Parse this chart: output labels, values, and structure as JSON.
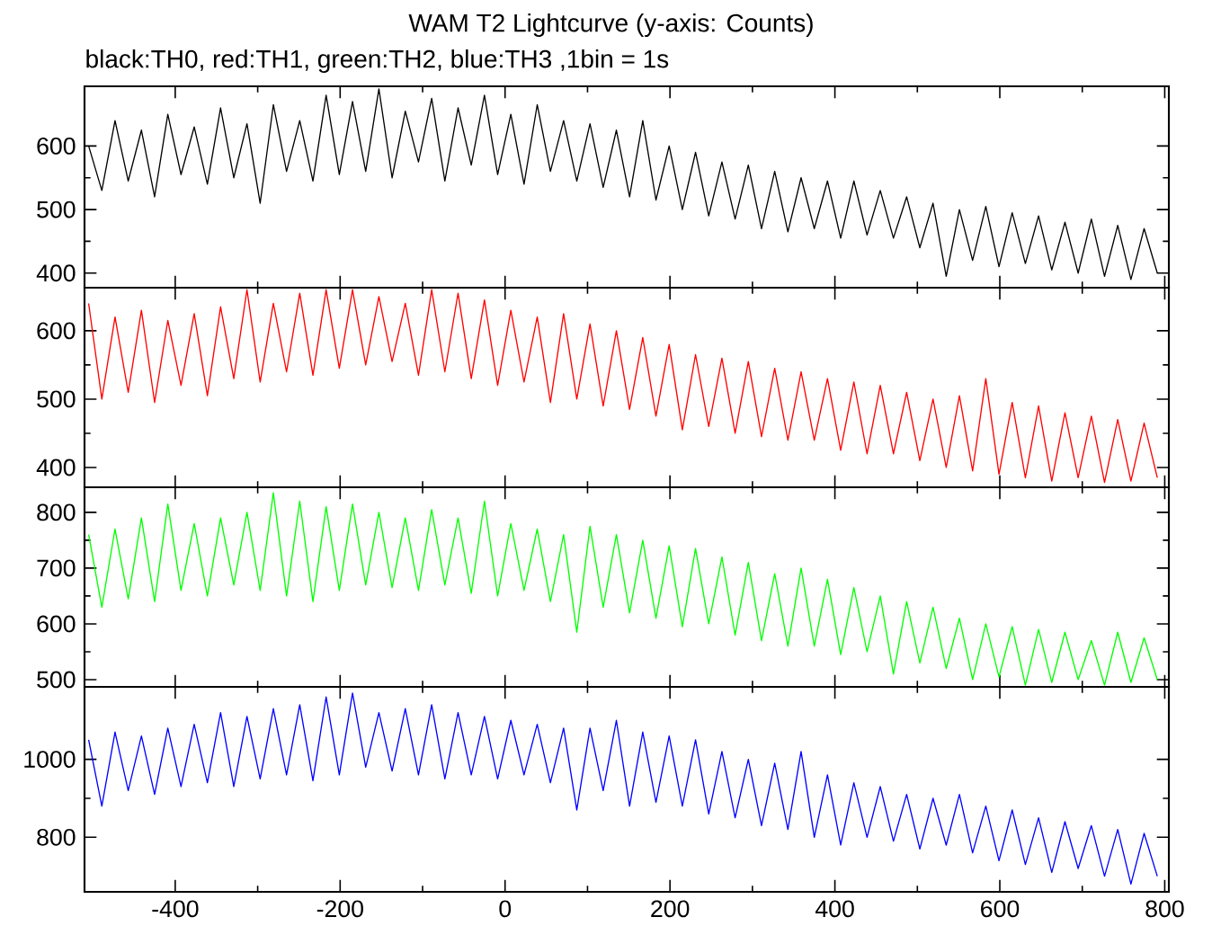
{
  "chart_data": [
    {
      "type": "line",
      "title": "WAM T2 Lightcurve (y-axis: Counts)",
      "subtitle": "black:TH0, red:TH1, green:TH2, blue:TH3 ,1bin = 1s",
      "x": [
        -505,
        -489,
        -473,
        -457,
        -441,
        -425,
        -409,
        -393,
        -377,
        -361,
        -345,
        -329,
        -313,
        -297,
        -281,
        -265,
        -249,
        -233,
        -217,
        -201,
        -185,
        -169,
        -153,
        -137,
        -121,
        -105,
        -89,
        -73,
        -57,
        -41,
        -25,
        -9,
        7,
        23,
        39,
        55,
        71,
        87,
        103,
        119,
        135,
        151,
        167,
        183,
        199,
        215,
        231,
        247,
        263,
        279,
        295,
        311,
        327,
        343,
        359,
        375,
        391,
        407,
        423,
        439,
        455,
        471,
        487,
        503,
        519,
        535,
        551,
        567,
        583,
        599,
        615,
        631,
        647,
        663,
        679,
        695,
        711,
        727,
        743,
        759,
        775,
        791
      ],
      "series": [
        {
          "color": "#000000",
          "values": [
            600,
            530,
            640,
            545,
            625,
            520,
            650,
            555,
            630,
            540,
            660,
            550,
            635,
            510,
            665,
            560,
            640,
            545,
            680,
            555,
            670,
            560,
            690,
            550,
            655,
            575,
            675,
            545,
            660,
            570,
            680,
            555,
            650,
            540,
            665,
            560,
            640,
            545,
            635,
            535,
            625,
            520,
            640,
            515,
            600,
            500,
            590,
            490,
            575,
            485,
            570,
            470,
            560,
            465,
            550,
            470,
            545,
            455,
            545,
            460,
            530,
            455,
            520,
            440,
            510,
            395,
            500,
            420,
            505,
            410,
            495,
            415,
            490,
            405,
            480,
            400,
            485,
            395,
            475,
            390,
            470,
            400
          ]
        }
      ],
      "xlim": [
        -510,
        805
      ],
      "xticks": [
        -400,
        -200,
        0,
        200,
        400,
        600,
        800
      ],
      "ylim": [
        377,
        694
      ],
      "yticks": [
        400,
        500,
        600
      ],
      "tick_labels": "y"
    },
    {
      "type": "line",
      "x": [
        -505,
        -489,
        -473,
        -457,
        -441,
        -425,
        -409,
        -393,
        -377,
        -361,
        -345,
        -329,
        -313,
        -297,
        -281,
        -265,
        -249,
        -233,
        -217,
        -201,
        -185,
        -169,
        -153,
        -137,
        -121,
        -105,
        -89,
        -73,
        -57,
        -41,
        -25,
        -9,
        7,
        23,
        39,
        55,
        71,
        87,
        103,
        119,
        135,
        151,
        167,
        183,
        199,
        215,
        231,
        247,
        263,
        279,
        295,
        311,
        327,
        343,
        359,
        375,
        391,
        407,
        423,
        439,
        455,
        471,
        487,
        503,
        519,
        535,
        551,
        567,
        583,
        599,
        615,
        631,
        647,
        663,
        679,
        695,
        711,
        727,
        743,
        759,
        775,
        791
      ],
      "series": [
        {
          "color": "#ff0000",
          "values": [
            640,
            500,
            620,
            510,
            630,
            495,
            615,
            520,
            625,
            505,
            635,
            530,
            660,
            525,
            640,
            540,
            655,
            535,
            660,
            545,
            660,
            550,
            650,
            555,
            640,
            535,
            660,
            540,
            655,
            530,
            645,
            520,
            630,
            525,
            620,
            495,
            625,
            500,
            610,
            490,
            600,
            485,
            590,
            475,
            580,
            455,
            565,
            460,
            560,
            450,
            555,
            445,
            545,
            440,
            540,
            440,
            530,
            425,
            525,
            420,
            520,
            420,
            510,
            410,
            500,
            400,
            505,
            395,
            530,
            390,
            495,
            385,
            490,
            380,
            480,
            385,
            475,
            378,
            470,
            380,
            465,
            385
          ]
        }
      ],
      "xlim": [
        -510,
        805
      ],
      "xticks": [
        -400,
        -200,
        0,
        200,
        400,
        600,
        800
      ],
      "ylim": [
        371,
        663
      ],
      "yticks": [
        400,
        500,
        600
      ],
      "tick_labels": "y"
    },
    {
      "type": "line",
      "x": [
        -505,
        -489,
        -473,
        -457,
        -441,
        -425,
        -409,
        -393,
        -377,
        -361,
        -345,
        -329,
        -313,
        -297,
        -281,
        -265,
        -249,
        -233,
        -217,
        -201,
        -185,
        -169,
        -153,
        -137,
        -121,
        -105,
        -89,
        -73,
        -57,
        -41,
        -25,
        -9,
        7,
        23,
        39,
        55,
        71,
        87,
        103,
        119,
        135,
        151,
        167,
        183,
        199,
        215,
        231,
        247,
        263,
        279,
        295,
        311,
        327,
        343,
        359,
        375,
        391,
        407,
        423,
        439,
        455,
        471,
        487,
        503,
        519,
        535,
        551,
        567,
        583,
        599,
        615,
        631,
        647,
        663,
        679,
        695,
        711,
        727,
        743,
        759,
        775,
        791
      ],
      "series": [
        {
          "color": "#00ff00",
          "values": [
            760,
            630,
            770,
            645,
            790,
            640,
            815,
            660,
            780,
            650,
            790,
            670,
            800,
            660,
            835,
            650,
            820,
            640,
            810,
            660,
            815,
            670,
            800,
            665,
            790,
            660,
            805,
            670,
            790,
            655,
            820,
            650,
            780,
            660,
            770,
            640,
            760,
            585,
            775,
            630,
            760,
            620,
            750,
            610,
            740,
            595,
            735,
            600,
            720,
            580,
            710,
            570,
            690,
            560,
            700,
            560,
            680,
            545,
            665,
            550,
            650,
            510,
            640,
            530,
            630,
            520,
            610,
            500,
            600,
            505,
            595,
            490,
            590,
            495,
            585,
            500,
            570,
            490,
            585,
            495,
            575,
            500
          ]
        }
      ],
      "xlim": [
        -510,
        805
      ],
      "xticks": [
        -400,
        -200,
        0,
        200,
        400,
        600,
        800
      ],
      "ylim": [
        487,
        845
      ],
      "yticks": [
        500,
        600,
        700,
        800
      ],
      "tick_labels": "y"
    },
    {
      "type": "line",
      "x": [
        -505,
        -489,
        -473,
        -457,
        -441,
        -425,
        -409,
        -393,
        -377,
        -361,
        -345,
        -329,
        -313,
        -297,
        -281,
        -265,
        -249,
        -233,
        -217,
        -201,
        -185,
        -169,
        -153,
        -137,
        -121,
        -105,
        -89,
        -73,
        -57,
        -41,
        -25,
        -9,
        7,
        23,
        39,
        55,
        71,
        87,
        103,
        119,
        135,
        151,
        167,
        183,
        199,
        215,
        231,
        247,
        263,
        279,
        295,
        311,
        327,
        343,
        359,
        375,
        391,
        407,
        423,
        439,
        455,
        471,
        487,
        503,
        519,
        535,
        551,
        567,
        583,
        599,
        615,
        631,
        647,
        663,
        679,
        695,
        711,
        727,
        743,
        759,
        775,
        791
      ],
      "series": [
        {
          "color": "#0000ff",
          "values": [
            1050,
            880,
            1070,
            920,
            1060,
            910,
            1080,
            930,
            1090,
            940,
            1120,
            930,
            1110,
            950,
            1130,
            960,
            1140,
            945,
            1160,
            960,
            1170,
            980,
            1120,
            970,
            1130,
            960,
            1140,
            950,
            1120,
            960,
            1110,
            950,
            1100,
            960,
            1090,
            940,
            1080,
            870,
            1080,
            920,
            1100,
            880,
            1070,
            890,
            1060,
            880,
            1050,
            860,
            1020,
            850,
            1000,
            830,
            990,
            820,
            1020,
            800,
            960,
            780,
            940,
            800,
            930,
            790,
            910,
            770,
            900,
            780,
            910,
            760,
            880,
            740,
            870,
            730,
            850,
            710,
            840,
            720,
            830,
            700,
            820,
            680,
            810,
            700
          ]
        }
      ],
      "xlim": [
        -510,
        805
      ],
      "xticks": [
        -400,
        -200,
        0,
        200,
        400,
        600,
        800
      ],
      "ylim": [
        660,
        1186
      ],
      "yticks": [
        800,
        1000
      ]
    }
  ]
}
